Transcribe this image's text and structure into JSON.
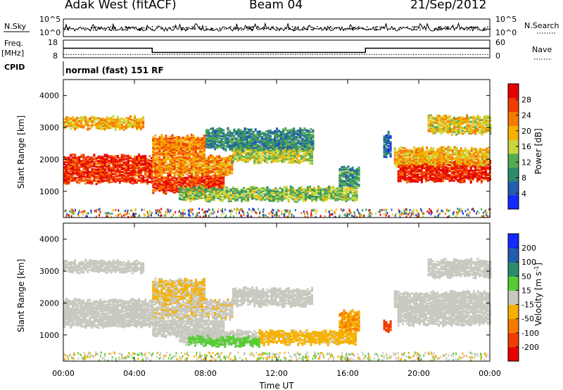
{
  "header": {
    "site": "Adak West (fitACF)",
    "beam": "Beam 04",
    "date": "21/Sep/2012"
  },
  "chart_data": {
    "type": "heatmap",
    "xlabel": "Time UT",
    "xticks": [
      "00:00",
      "04:00",
      "08:00",
      "12:00",
      "16:00",
      "20:00",
      "00:00"
    ],
    "xrange_hours": [
      0,
      24
    ],
    "noise_panel": {
      "left_label": "N.Sky",
      "right_label": "N.Search",
      "left_ticks": [
        "10^5",
        "10^0"
      ],
      "right_ticks": [
        "10^5",
        "10^0"
      ],
      "scale": "log"
    },
    "freq_panel": {
      "left_label_top": "Freq.",
      "left_label_bottom": "[MHz]",
      "left_ticks": [
        "18",
        "8"
      ],
      "left_range": [
        8,
        18
      ],
      "right_label": "Nave",
      "right_ticks": [
        "60",
        "0"
      ],
      "right_range": [
        0,
        60
      ],
      "freq_steps": [
        [
          0,
          13.4
        ],
        [
          5,
          11.0
        ],
        [
          17,
          13.4
        ],
        [
          24,
          13.4
        ]
      ],
      "nave_level": 11
    },
    "cpid": {
      "label": "CPID",
      "text": "normal (fast) 151 RF"
    },
    "panels": [
      {
        "name": "power",
        "ylabel": "Slant Range [km]",
        "yticks": [
          "4000",
          "3000",
          "2000",
          "1000"
        ],
        "yrange_km": [
          180,
          4500
        ],
        "colorbar_label": "Power [dB]",
        "colorbar_ticks": [
          "28",
          "24",
          "20",
          "16",
          "12",
          "8",
          "4"
        ],
        "colorbar_range": [
          0,
          32
        ],
        "colors": [
          "#1428ff",
          "#235db0",
          "#2b8c6a",
          "#55aa55",
          "#c8d83c",
          "#f5b000",
          "#f57a00",
          "#f03c00",
          "#e60000"
        ],
        "regions": [
          {
            "t": [
              0.0,
              5.0
            ],
            "lo": 1250,
            "hi": 2100,
            "v": 28
          },
          {
            "t": [
              5.0,
              9.0
            ],
            "lo": 950,
            "hi": 1450,
            "v": 27
          },
          {
            "t": [
              5.0,
              9.5
            ],
            "lo": 1500,
            "hi": 2050,
            "v": 22
          },
          {
            "t": [
              9.5,
              14.0
            ],
            "lo": 1900,
            "hi": 2400,
            "v": 16
          },
          {
            "t": [
              6.5,
              16.5
            ],
            "lo": 700,
            "hi": 1100,
            "v": 14
          },
          {
            "t": [
              8.0,
              14.0
            ],
            "lo": 2300,
            "hi": 2900,
            "v": 9
          },
          {
            "t": [
              0.0,
              4.5
            ],
            "lo": 2950,
            "hi": 3300,
            "v": 20
          },
          {
            "t": [
              5.0,
              8.0
            ],
            "lo": 2050,
            "hi": 2700,
            "v": 23
          },
          {
            "t": [
              18.8,
              24.0
            ],
            "lo": 1300,
            "hi": 1900,
            "v": 29
          },
          {
            "t": [
              18.6,
              24.0
            ],
            "lo": 1800,
            "hi": 2300,
            "v": 20
          },
          {
            "t": [
              20.5,
              24.0
            ],
            "lo": 2800,
            "hi": 3300,
            "v": 18
          },
          {
            "t": [
              15.5,
              16.6
            ],
            "lo": 1100,
            "hi": 1700,
            "v": 10
          },
          {
            "t": [
              18.0,
              18.4
            ],
            "lo": 2100,
            "hi": 2800,
            "v": 6
          }
        ]
      },
      {
        "name": "velocity",
        "ylabel": "Slant Range [km]",
        "yticks": [
          "4000",
          "3000",
          "2000",
          "1000"
        ],
        "yrange_km": [
          180,
          4500
        ],
        "colorbar_label": "Velocity [m s^-1]",
        "colorbar_ticks": [
          "200",
          "100",
          "50",
          "15",
          "-15",
          "-50",
          "-100",
          "-200"
        ],
        "colorbar_range": [
          -250,
          250
        ],
        "colors": [
          "#e60000",
          "#f03c00",
          "#f57a00",
          "#f5b000",
          "#c8c8c0",
          "#55cc33",
          "#2b8c6a",
          "#235db0",
          "#1428ff"
        ],
        "regions": [
          {
            "t": [
              0.0,
              5.0
            ],
            "lo": 1250,
            "hi": 2100,
            "v": 0
          },
          {
            "t": [
              5.0,
              9.0
            ],
            "lo": 950,
            "hi": 1450,
            "v": 0
          },
          {
            "t": [
              5.0,
              9.5
            ],
            "lo": 1500,
            "hi": 2050,
            "v": -20
          },
          {
            "t": [
              9.5,
              14.0
            ],
            "lo": 1900,
            "hi": 2400,
            "v": 0
          },
          {
            "t": [
              6.5,
              11.0
            ],
            "lo": 700,
            "hi": 1100,
            "v": 0
          },
          {
            "t": [
              11.0,
              16.5
            ],
            "lo": 700,
            "hi": 1100,
            "v": -40
          },
          {
            "t": [
              7.0,
              11.0
            ],
            "lo": 650,
            "hi": 900,
            "v": 40
          },
          {
            "t": [
              0.0,
              4.5
            ],
            "lo": 2950,
            "hi": 3300,
            "v": 0
          },
          {
            "t": [
              5.0,
              8.0
            ],
            "lo": 2050,
            "hi": 2700,
            "v": -30
          },
          {
            "t": [
              18.8,
              24.0
            ],
            "lo": 1300,
            "hi": 1900,
            "v": 0
          },
          {
            "t": [
              18.6,
              24.0
            ],
            "lo": 1800,
            "hi": 2300,
            "v": 0
          },
          {
            "t": [
              20.5,
              24.0
            ],
            "lo": 2800,
            "hi": 3300,
            "v": 0
          },
          {
            "t": [
              15.5,
              16.6
            ],
            "lo": 1100,
            "hi": 1700,
            "v": -80
          },
          {
            "t": [
              18.0,
              18.4
            ],
            "lo": 1100,
            "hi": 1400,
            "v": -150
          }
        ]
      }
    ]
  }
}
